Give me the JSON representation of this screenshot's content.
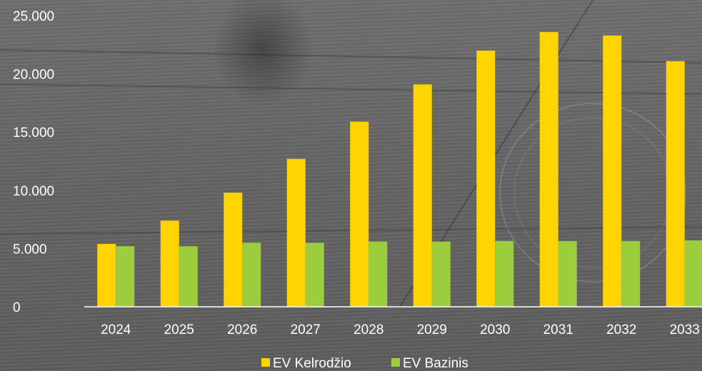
{
  "chart_data": {
    "type": "bar",
    "categories": [
      "2024",
      "2025",
      "2026",
      "2027",
      "2028",
      "2029",
      "2030",
      "2031",
      "2032",
      "2033"
    ],
    "series": [
      {
        "name": "EV Kelrodžio",
        "color": "#ffd400",
        "values": [
          5400,
          7400,
          9800,
          12700,
          15900,
          19100,
          22000,
          23600,
          23300,
          21100
        ]
      },
      {
        "name": "EV Bazinis",
        "color": "#9bcd3c",
        "values": [
          5200,
          5200,
          5500,
          5500,
          5600,
          5600,
          5650,
          5650,
          5650,
          5700
        ]
      }
    ],
    "yticks": [
      "0",
      "5.000",
      "10.000",
      "15.000",
      "20.000",
      "25.000"
    ],
    "ylim": [
      0,
      25000
    ],
    "grid": false,
    "legend": "bottom"
  }
}
